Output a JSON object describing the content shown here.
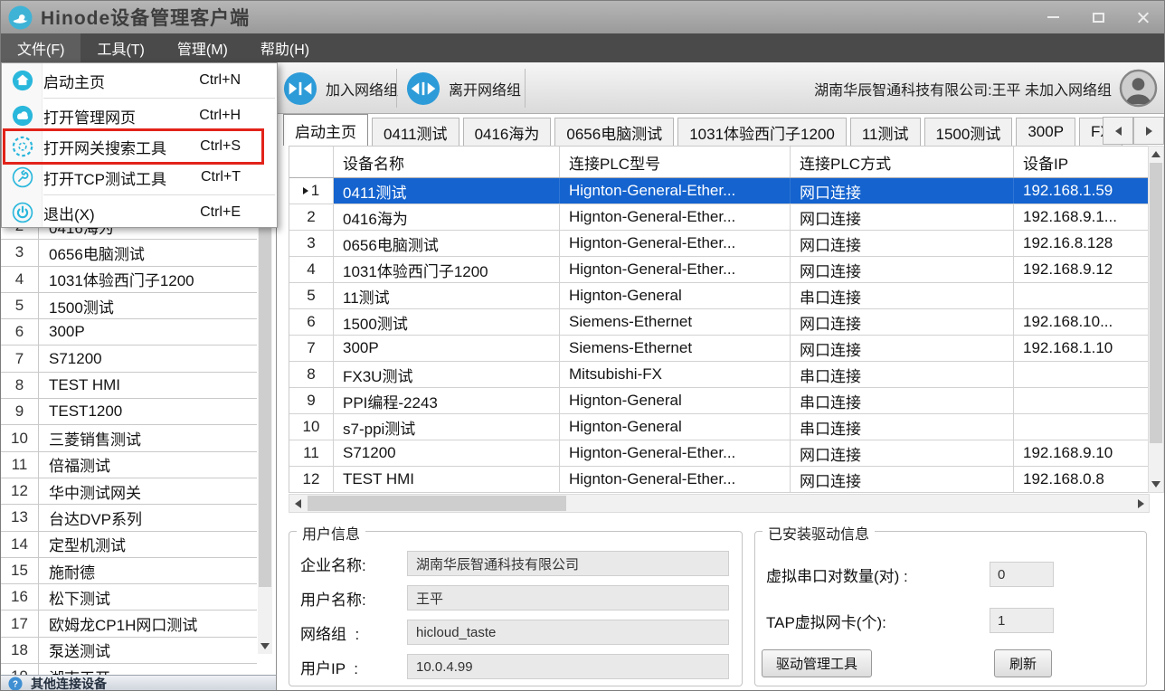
{
  "colors": {
    "selection_blue": "#1463cf",
    "menu_icon_teal": "#2ab7dc",
    "toolbar_icon_blue": "#2d9bd8",
    "highlight_red": "#e2231a"
  },
  "window": {
    "title": "Hinode设备管理客户端"
  },
  "menu_bar": {
    "items": [
      {
        "label": "文件(F)",
        "active": true
      },
      {
        "label": "工具(T)",
        "active": false
      },
      {
        "label": "管理(M)",
        "active": false
      },
      {
        "label": "帮助(H)",
        "active": false
      }
    ]
  },
  "file_menu": {
    "items": [
      {
        "icon": "home-icon",
        "label": "启动主页",
        "shortcut": "Ctrl+N",
        "highlighted": false,
        "separator_after": true
      },
      {
        "icon": "cloud-icon",
        "label": "打开管理网页",
        "shortcut": "Ctrl+H",
        "highlighted": false,
        "separator_after": false
      },
      {
        "icon": "globe-icon",
        "label": "打开网关搜索工具",
        "shortcut": "Ctrl+S",
        "highlighted": true,
        "separator_after": false
      },
      {
        "icon": "wrench-icon",
        "label": "打开TCP测试工具",
        "shortcut": "Ctrl+T",
        "highlighted": false,
        "separator_after": true
      },
      {
        "icon": "power-icon",
        "label": "退出(X)",
        "shortcut": "Ctrl+E",
        "highlighted": false,
        "separator_after": false
      }
    ]
  },
  "toolbar": {
    "join_label": "加入网络组",
    "leave_label": "离开网络组",
    "user_status": "湖南华辰智通科技有限公司:王平  未加入网络组"
  },
  "tabs": {
    "active_index": 0,
    "items": [
      "启动主页",
      "0411测试",
      "0416海为",
      "0656电脑测试",
      "1031体验西门子1200",
      "11测试",
      "1500测试",
      "300P",
      "FX"
    ]
  },
  "device_table": {
    "columns": [
      "设备名称",
      "连接PLC型号",
      "连接PLC方式",
      "设备IP"
    ],
    "rows": [
      {
        "num": "1",
        "name": "0411测试",
        "model": "Hignton-General-Ether...",
        "method": "网口连接",
        "ip": "192.168.1.59",
        "selected": true
      },
      {
        "num": "2",
        "name": "0416海为",
        "model": "Hignton-General-Ether...",
        "method": "网口连接",
        "ip": "192.168.9.1...",
        "selected": false
      },
      {
        "num": "3",
        "name": "0656电脑测试",
        "model": "Hignton-General-Ether...",
        "method": "网口连接",
        "ip": "192.16.8.128",
        "selected": false
      },
      {
        "num": "4",
        "name": "1031体验西门子1200",
        "model": "Hignton-General-Ether...",
        "method": "网口连接",
        "ip": "192.168.9.12",
        "selected": false
      },
      {
        "num": "5",
        "name": "11测试",
        "model": "Hignton-General",
        "method": "串口连接",
        "ip": "",
        "selected": false
      },
      {
        "num": "6",
        "name": "1500测试",
        "model": "Siemens-Ethernet",
        "method": "网口连接",
        "ip": "192.168.10...",
        "selected": false
      },
      {
        "num": "7",
        "name": "300P",
        "model": "Siemens-Ethernet",
        "method": "网口连接",
        "ip": "192.168.1.10",
        "selected": false
      },
      {
        "num": "8",
        "name": "FX3U测试",
        "model": "Mitsubishi-FX",
        "method": "串口连接",
        "ip": "",
        "selected": false
      },
      {
        "num": "9",
        "name": "PPI编程-2243",
        "model": "Hignton-General",
        "method": "串口连接",
        "ip": "",
        "selected": false
      },
      {
        "num": "10",
        "name": "s7-ppi测试",
        "model": "Hignton-General",
        "method": "串口连接",
        "ip": "",
        "selected": false
      },
      {
        "num": "11",
        "name": "S71200",
        "model": "Hignton-General-Ether...",
        "method": "网口连接",
        "ip": "192.168.9.10",
        "selected": false
      },
      {
        "num": "12",
        "name": "TEST HMI",
        "model": "Hignton-General-Ether...",
        "method": "网口连接",
        "ip": "192.168.0.8",
        "selected": false
      }
    ]
  },
  "sidebar": {
    "rows": [
      {
        "num": "2",
        "name": "0416海为"
      },
      {
        "num": "3",
        "name": "0656电脑测试"
      },
      {
        "num": "4",
        "name": "1031体验西门子1200"
      },
      {
        "num": "5",
        "name": "1500测试"
      },
      {
        "num": "6",
        "name": "300P"
      },
      {
        "num": "7",
        "name": "S71200"
      },
      {
        "num": "8",
        "name": "TEST HMI"
      },
      {
        "num": "9",
        "name": "TEST1200"
      },
      {
        "num": "10",
        "name": "三菱销售测试"
      },
      {
        "num": "11",
        "name": "倍福测试"
      },
      {
        "num": "12",
        "name": "华中测试网关"
      },
      {
        "num": "13",
        "name": "台达DVP系列"
      },
      {
        "num": "14",
        "name": "定型机测试"
      },
      {
        "num": "15",
        "name": "施耐德"
      },
      {
        "num": "16",
        "name": "松下测试"
      },
      {
        "num": "17",
        "name": "欧姆龙CP1H网口测试"
      },
      {
        "num": "18",
        "name": "泵送测试"
      },
      {
        "num": "19",
        "name": "湖南天开"
      }
    ],
    "footer_label": "其他连接设备"
  },
  "user_info": {
    "title": "用户信息",
    "fields": [
      {
        "label": "企业名称:",
        "value": "湖南华辰智通科技有限公司"
      },
      {
        "label": "用户名称:",
        "value": "王平"
      },
      {
        "label": "网络组  :",
        "value": "hicloud_taste"
      },
      {
        "label": "用户IP  :",
        "value": "10.0.4.99"
      }
    ]
  },
  "driver_info": {
    "title": "已安装驱动信息",
    "fields": [
      {
        "label": "虚拟串口对数量(对) :",
        "value": "0"
      },
      {
        "label": "TAP虚拟网卡(个):",
        "value": "1"
      }
    ],
    "manage_button": "驱动管理工具",
    "refresh_button": "刷新"
  }
}
